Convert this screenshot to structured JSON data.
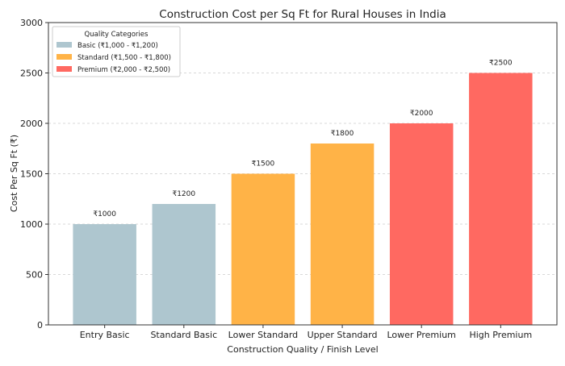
{
  "chart_data": {
    "type": "bar",
    "title": "Construction Cost per Sq Ft for Rural Houses in India",
    "xlabel": "Construction Quality / Finish Level",
    "ylabel": "Cost Per Sq Ft (₹)",
    "ylim": [
      0,
      3000
    ],
    "yticks": [
      0,
      500,
      1000,
      1500,
      2000,
      2500,
      3000
    ],
    "grid": "y-dashed",
    "categories": [
      "Entry Basic",
      "Standard Basic",
      "Lower Standard",
      "Upper Standard",
      "Lower Premium",
      "High Premium"
    ],
    "values": [
      1000,
      1200,
      1500,
      1800,
      2000,
      2500
    ],
    "data_labels": [
      "₹1000",
      "₹1200",
      "₹1500",
      "₹1800",
      "₹2000",
      "₹2500"
    ],
    "bar_groups": [
      0,
      0,
      1,
      1,
      2,
      2
    ],
    "legend": {
      "title": "Quality Categories",
      "placement": "top-left",
      "entries": [
        {
          "label": "Basic (₹1,000 - ₹1,200)",
          "color": "#aec6cf"
        },
        {
          "label": "Standard (₹1,500 - ₹1,800)",
          "color": "#ffb347"
        },
        {
          "label": "Premium (₹2,000 - ₹2,500)",
          "color": "#ff6961"
        }
      ]
    }
  }
}
